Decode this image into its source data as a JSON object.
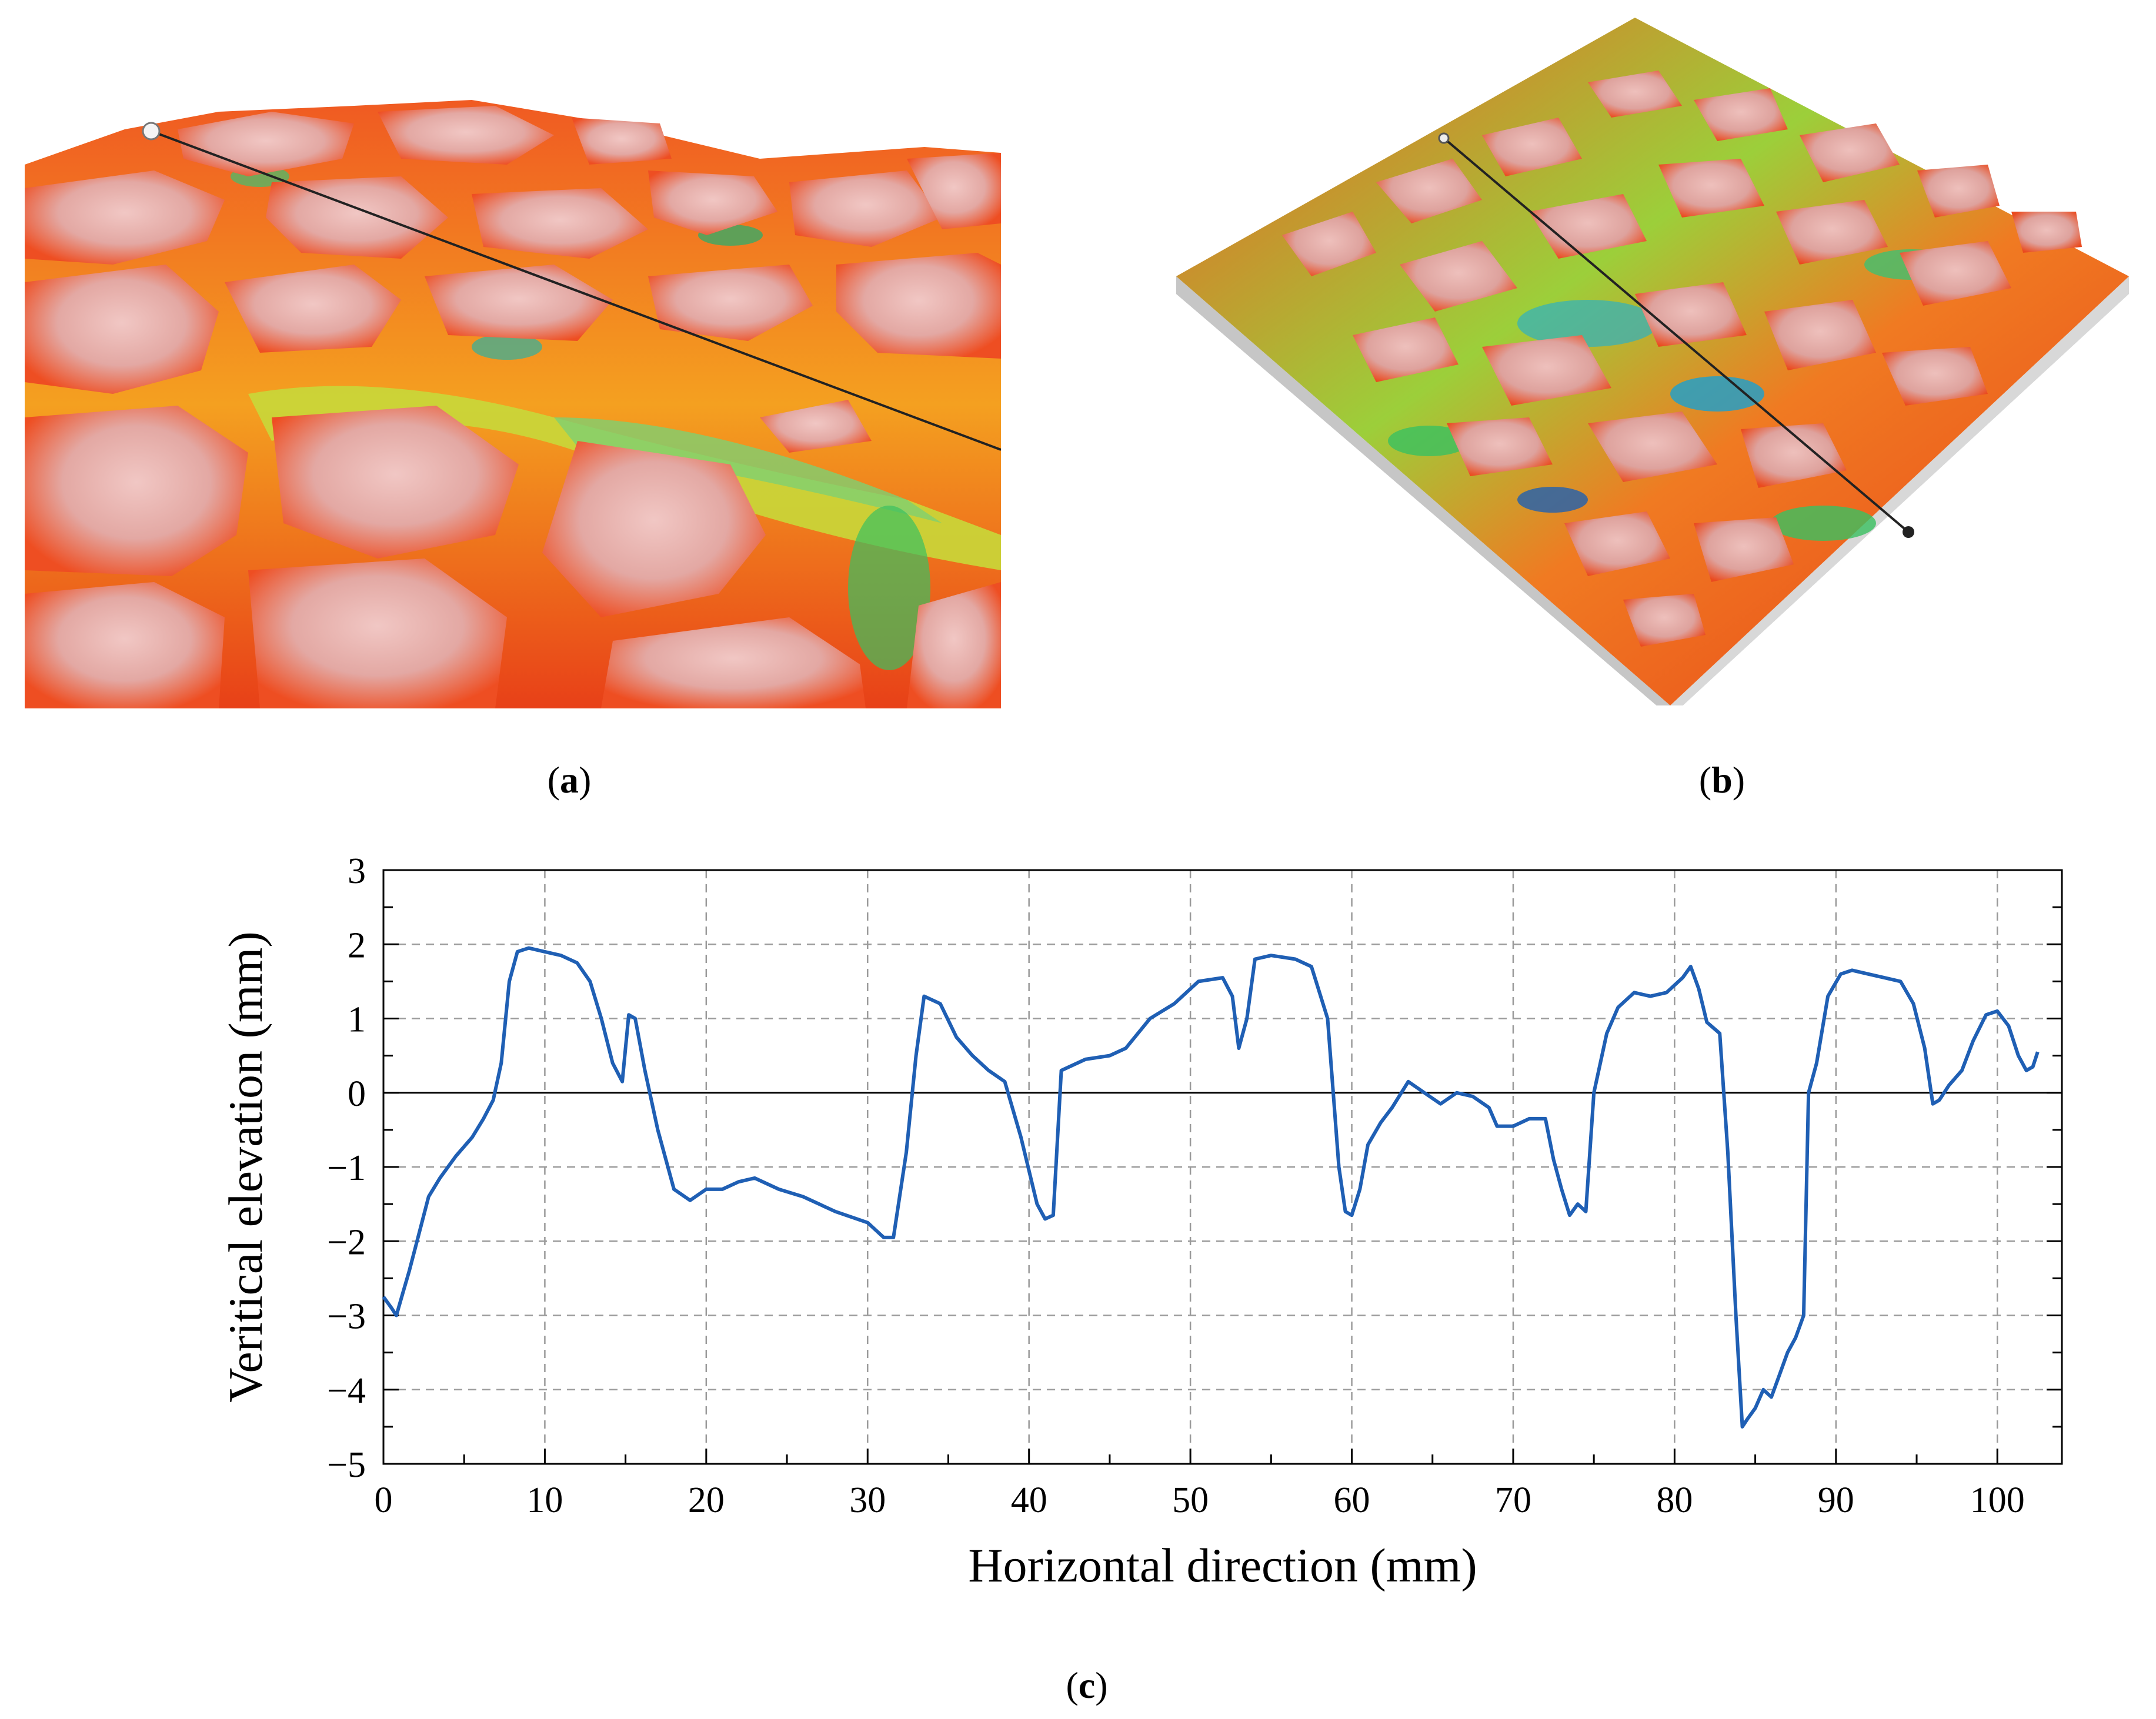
{
  "captions": {
    "a": "a",
    "b": "b",
    "c": "c"
  },
  "colors": {
    "line": "#1f5fb4",
    "grid": "#9a9a9a",
    "surface_high": "#e9a5a0",
    "surface_mid": "#f04a1a",
    "surface_low": "#2fb85a"
  },
  "chart_data": {
    "type": "line",
    "title": "",
    "xlabel": "Horizontal direction (mm)",
    "ylabel": "Veritical elevation (mm)",
    "xlim": [
      0,
      104
    ],
    "ylim": [
      -5,
      3
    ],
    "xticks": [
      0,
      10,
      20,
      30,
      40,
      50,
      60,
      70,
      80,
      90,
      100
    ],
    "yticks": [
      -5,
      -4,
      -3,
      -2,
      -1,
      0,
      1,
      2,
      3
    ],
    "xtick_labels": [
      "0",
      "10",
      "20",
      "30",
      "40",
      "50",
      "60",
      "70",
      "80",
      "90",
      "100"
    ],
    "ytick_labels": [
      "−5",
      "−4",
      "−3",
      "−2",
      "−1",
      "0",
      "1",
      "2",
      "3"
    ],
    "grid": true,
    "series": [
      {
        "x": [
          0,
          0.5,
          0.8,
          1.2,
          1.6,
          2.2,
          2.8,
          3.5,
          4.5,
          5.5,
          6.2,
          6.8,
          7.3,
          7.8,
          8.3,
          9.0,
          10.0,
          11.0,
          12.0,
          12.8,
          13.5,
          14.2,
          14.8,
          15.2,
          15.6,
          16.2,
          17.0,
          18.0,
          19.0,
          20.0,
          21.0,
          22.0,
          23.0,
          24.5,
          26.0,
          28.0,
          30.0,
          31.0,
          31.6,
          32.4,
          33.0,
          33.5,
          34.5,
          35.5,
          36.5,
          37.5,
          38.5,
          39.5,
          40.5,
          41.0,
          41.5,
          42.0,
          43.5,
          45.0,
          46.0,
          47.5,
          49.0,
          50.5,
          52.0,
          52.6,
          53.0,
          53.5,
          54.0,
          55.0,
          56.5,
          57.5,
          58.5,
          59.2,
          59.6,
          60.0,
          60.5,
          61.0,
          61.8,
          62.5,
          63.5,
          64.5,
          65.5,
          66.5,
          67.5,
          68.5,
          69.0,
          70.0,
          71.0,
          72.0,
          72.5,
          73.0,
          73.5,
          74.0,
          74.5,
          75.0,
          75.3,
          75.8,
          76.5,
          77.5,
          78.5,
          79.5,
          80.5,
          81.0,
          81.5,
          82.0,
          82.8,
          83.3,
          83.8,
          84.2,
          84.5,
          85.0,
          85.5,
          86.0,
          86.5,
          87.0,
          87.5,
          88.0,
          88.3,
          88.8,
          89.5,
          90.3,
          91.0,
          92.0,
          93.0,
          94.0,
          94.8,
          95.5,
          96.0,
          96.4,
          97.0,
          97.8,
          98.5,
          99.3,
          100.0,
          100.7,
          101.3,
          101.8,
          102.2,
          102.5
        ],
        "y": [
          -2.75,
          -2.9,
          -3.0,
          -2.7,
          -2.4,
          -1.9,
          -1.4,
          -1.15,
          -0.85,
          -0.6,
          -0.35,
          -0.1,
          0.4,
          1.5,
          1.9,
          1.95,
          1.9,
          1.85,
          1.75,
          1.5,
          1.0,
          0.4,
          0.15,
          1.05,
          1.0,
          0.3,
          -0.5,
          -1.3,
          -1.45,
          -1.3,
          -1.3,
          -1.2,
          -1.15,
          -1.3,
          -1.4,
          -1.6,
          -1.75,
          -1.95,
          -1.95,
          -0.8,
          0.5,
          1.3,
          1.2,
          0.75,
          0.5,
          0.3,
          0.15,
          -0.6,
          -1.5,
          -1.7,
          -1.65,
          0.3,
          0.45,
          0.5,
          0.6,
          1.0,
          1.2,
          1.5,
          1.55,
          1.3,
          0.6,
          1.0,
          1.8,
          1.85,
          1.8,
          1.7,
          1.0,
          -1.0,
          -1.6,
          -1.65,
          -1.3,
          -0.7,
          -0.4,
          -0.2,
          0.15,
          0.0,
          -0.15,
          0.0,
          -0.05,
          -0.2,
          -0.45,
          -0.45,
          -0.35,
          -0.35,
          -0.9,
          -1.3,
          -1.65,
          -1.5,
          -1.6,
          0.0,
          0.3,
          0.8,
          1.15,
          1.35,
          1.3,
          1.35,
          1.55,
          1.7,
          1.4,
          0.95,
          0.8,
          -0.8,
          -3.0,
          -4.5,
          -4.4,
          -4.25,
          -4.0,
          -4.1,
          -3.8,
          -3.5,
          -3.3,
          -3.0,
          0.0,
          0.4,
          1.3,
          1.6,
          1.65,
          1.6,
          1.55,
          1.5,
          1.2,
          0.6,
          -0.15,
          -0.1,
          0.1,
          0.3,
          0.7,
          1.05,
          1.1,
          0.9,
          0.5,
          0.3,
          0.35,
          0.55
        ]
      }
    ]
  }
}
